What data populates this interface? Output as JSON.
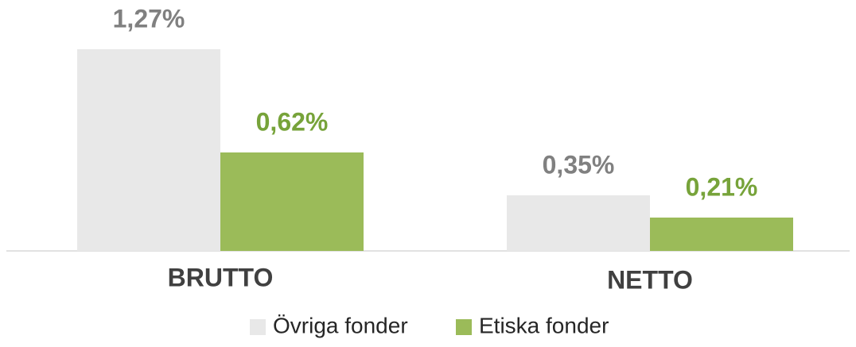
{
  "chart_data": {
    "type": "bar",
    "categories": [
      "BRUTTO",
      "NETTO"
    ],
    "series": [
      {
        "name": "Övriga fonder",
        "color": "#e8e8e8",
        "values": [
          1.27,
          0.35
        ],
        "value_labels": [
          "1,27%",
          "0,35%"
        ]
      },
      {
        "name": "Etiska fonder",
        "color": "#9bbb59",
        "values": [
          0.62,
          0.21
        ],
        "value_labels": [
          "0,62%",
          "0,21%"
        ]
      }
    ]
  }
}
